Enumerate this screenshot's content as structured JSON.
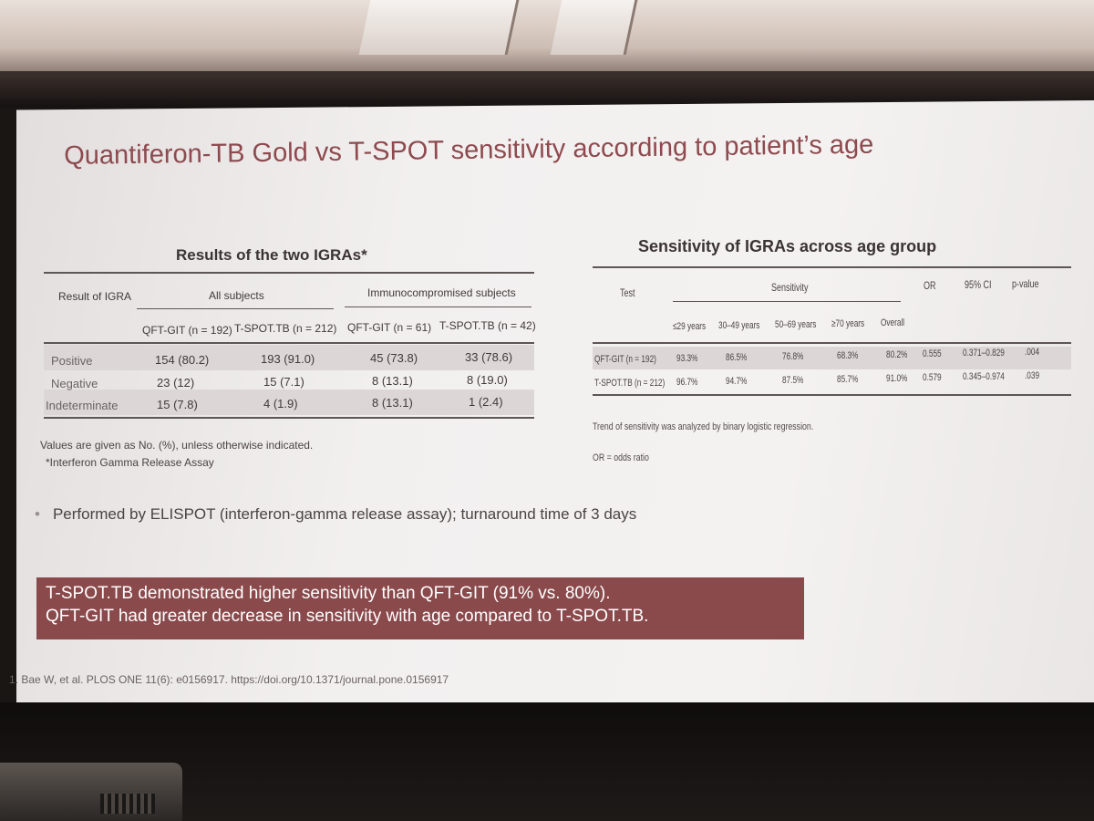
{
  "slide": {
    "title": "Quantiferon-TB Gold vs T-SPOT sensitivity according to patient’s age",
    "bullet": "Performed by ELISPOT (interferon-gamma release assay); turnaround time of 3 days",
    "callout_line1": "T-SPOT.TB demonstrated higher sensitivity than QFT-GIT (91% vs. 80%).",
    "callout_line2": "QFT-GIT had greater decrease in sensitivity with age compared to T-SPOT.TB.",
    "reference": "1. Bae W, et al. PLOS ONE 11(6): e0156917. https://doi.org/10.1371/journal.pone.0156917",
    "colors": {
      "title": "#8e4a4f",
      "callout_bg": "#8a4a4c"
    }
  },
  "left_table": {
    "caption": "Results of the two IGRAs*",
    "col_header_result": "Result of IGRA",
    "group_all": "All subjects",
    "group_immuno": "Immunocompromised subjects",
    "sub_headers": [
      "QFT-GIT (n = 192)",
      "T-SPOT.TB (n = 212)",
      "QFT-GIT (n = 61)",
      "T-SPOT.TB (n = 42)"
    ],
    "rows": [
      {
        "label": "Positive",
        "cells": [
          "154 (80.2)",
          "193 (91.0)",
          "45 (73.8)",
          "33 (78.6)"
        ]
      },
      {
        "label": "Negative",
        "cells": [
          "23 (12)",
          "15 (7.1)",
          "8 (13.1)",
          "8 (19.0)"
        ]
      },
      {
        "label": "Indeterminate",
        "cells": [
          "15 (7.8)",
          "4 (1.9)",
          "8 (13.1)",
          "1 (2.4)"
        ]
      }
    ],
    "note1": "Values are given as No. (%), unless otherwise indicated.",
    "note2": "*Interferon Gamma Release Assay"
  },
  "right_table": {
    "caption": "Sensitivity of IGRAs across age group",
    "header_test": "Test",
    "header_sensitivity": "Sensitivity",
    "header_or": "OR",
    "header_ci": "95% CI",
    "header_p": "p-value",
    "age_headers": [
      "≤29 years",
      "30–49 years",
      "50–69 years",
      "≥70 years",
      "Overall"
    ],
    "rows": [
      {
        "label": "QFT-GIT (n = 192)",
        "cells": [
          "93.3%",
          "86.5%",
          "76.8%",
          "68.3%",
          "80.2%",
          "0.555",
          "0.371–0.829",
          ".004"
        ]
      },
      {
        "label": "T-SPOT.TB (n = 212)",
        "cells": [
          "96.7%",
          "94.7%",
          "87.5%",
          "85.7%",
          "91.0%",
          "0.579",
          "0.345–0.974",
          ".039"
        ]
      }
    ],
    "note1": "Trend of sensitivity was analyzed by binary logistic regression.",
    "note2": "OR = odds ratio"
  }
}
